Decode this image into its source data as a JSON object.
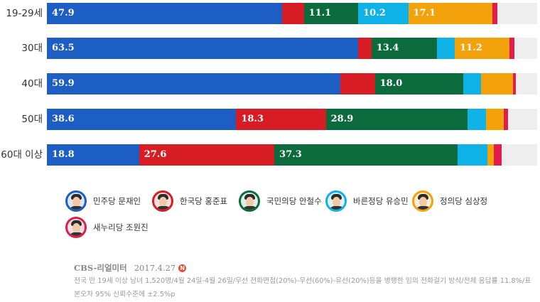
{
  "chart_data": {
    "type": "bar",
    "stacked": true,
    "orientation": "horizontal",
    "categories": [
      "19-29세",
      "30대",
      "40대",
      "50대",
      "60대 이상"
    ],
    "series": [
      {
        "name": "민주당 문재인",
        "color": "#1d5ec4",
        "values": [
          47.9,
          63.5,
          59.9,
          38.6,
          18.8
        ]
      },
      {
        "name": "한국당 홍준표",
        "color": "#d71c24",
        "values": [
          4.5,
          2.7,
          7.0,
          18.3,
          27.6
        ]
      },
      {
        "name": "국민의당 안철수",
        "color": "#0b6b3c",
        "values": [
          11.1,
          13.4,
          18.0,
          28.9,
          37.3
        ]
      },
      {
        "name": "바른정당 유승민",
        "color": "#0fb2e6",
        "values": [
          10.2,
          3.6,
          3.6,
          3.8,
          6.1
        ]
      },
      {
        "name": "정의당 심상정",
        "color": "#f4a20c",
        "values": [
          17.1,
          11.2,
          6.6,
          3.6,
          1.3
        ]
      },
      {
        "name": "새누리당 조원진",
        "color": "#e21d4e",
        "values": [
          1.1,
          1.0,
          0.6,
          0.8,
          1.6
        ]
      }
    ],
    "value_labels": [
      [
        47.9,
        null,
        11.1,
        10.2,
        17.1,
        null
      ],
      [
        63.5,
        null,
        13.4,
        null,
        11.2,
        null
      ],
      [
        59.9,
        null,
        18.0,
        null,
        null,
        null
      ],
      [
        38.6,
        18.3,
        28.9,
        null,
        null,
        null
      ],
      [
        18.8,
        27.6,
        37.3,
        null,
        null,
        null
      ]
    ],
    "xlim": [
      0,
      100
    ],
    "legend_position": "bottom"
  },
  "legend": [
    {
      "label": "민주당 문재인",
      "border": "#1d5ec4",
      "bg": "#dfe6f2"
    },
    {
      "label": "한국당 홍준표",
      "border": "#d71c24",
      "bg": "#f4e1df"
    },
    {
      "label": "국민의당 안철수",
      "border": "#0b6b3c",
      "bg": "#dfeee6"
    },
    {
      "label": "바른정당 유승민",
      "border": "#0fb2e6",
      "bg": "#dff2fa"
    },
    {
      "label": "정의당 심상정",
      "border": "#f4a20c",
      "bg": "#f9eedb"
    },
    {
      "label": "새누리당 조원진",
      "border": "#e21d4e",
      "bg": "#f8e0e6"
    }
  ],
  "footer": {
    "source": "CBS-리얼미터",
    "date": "2017.4.27",
    "badge": "N",
    "note_line1": "전국 만 19세 이상 남녀 1,520명/4월 24일-4월 26일/무선 전화면접(20%)-무선(60%)-유선(20%)등을 병행한 임의 전화걸기 방식/전체 응답률 11.8%/표",
    "note_line2": "본오차 95% 신뢰수준에 ±2.5%p"
  }
}
